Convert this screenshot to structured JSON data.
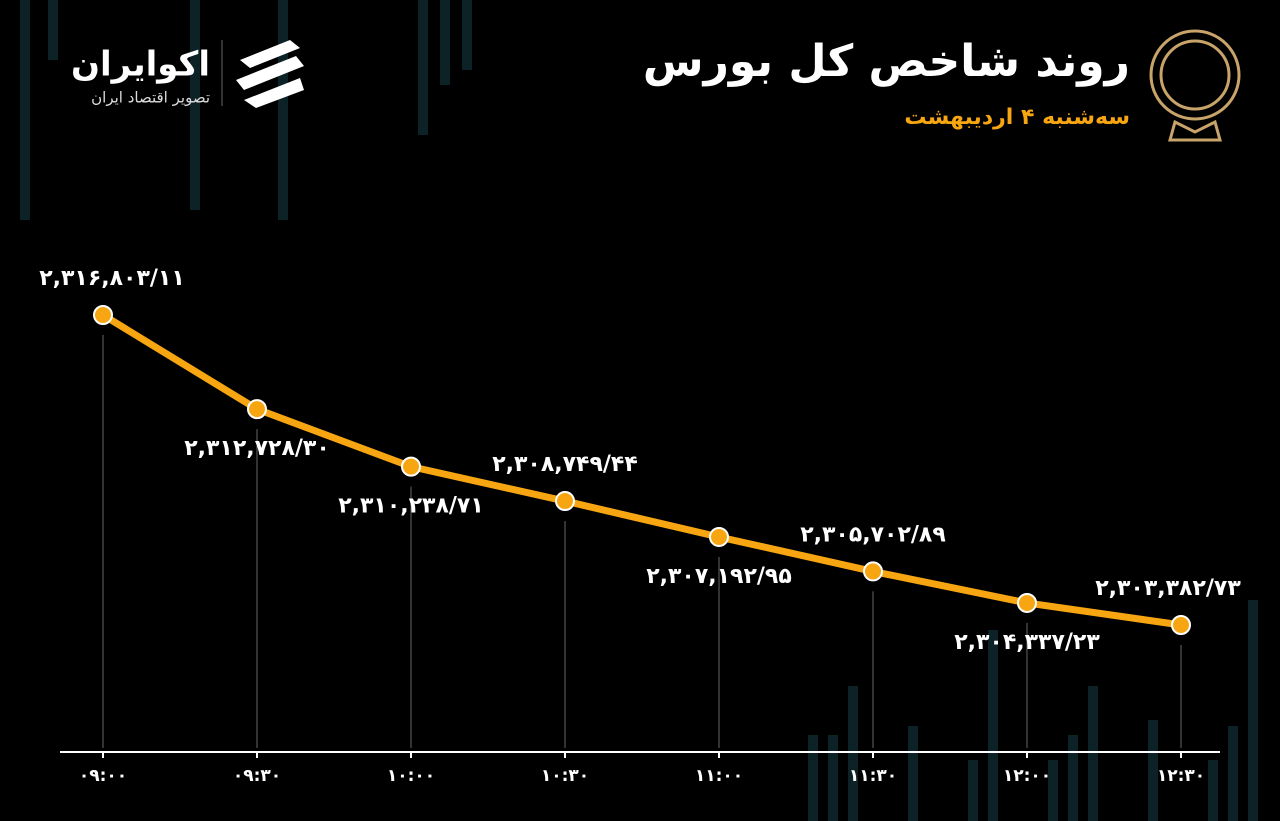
{
  "brand": {
    "name": "اکوایران",
    "tagline": "تصویر اقتصاد ایران"
  },
  "chart_data": {
    "type": "line",
    "title": "روند شاخص کل بورس",
    "subtitle": "سه‌شنبه ۴ اردیبهشت",
    "categories": [
      "۰۹:۰۰",
      "۰۹:۳۰",
      "۱۰:۰۰",
      "۱۰:۳۰",
      "۱۱:۰۰",
      "۱۱:۳۰",
      "۱۲:۰۰",
      "۱۲:۳۰"
    ],
    "series": [
      {
        "name": "شاخص کل",
        "color": "#f7a612",
        "values": [
          2316803.11,
          2312728.3,
          2310238.71,
          2308749.44,
          2307192.95,
          2305702.89,
          2304337.23,
          2303382.73
        ],
        "value_labels": [
          "۲,۳۱۶,۸۰۳/۱۱",
          "۲,۳۱۲,۷۲۸/۳۰",
          "۲,۳۱۰,۲۳۸/۷۱",
          "۲,۳۰۸,۷۴۹/۴۴",
          "۲,۳۰۷,۱۹۲/۹۵",
          "۲,۳۰۵,۷۰۲/۸۹",
          "۲,۳۰۴,۳۳۷/۲۳",
          "۲,۳۰۳,۳۸۲/۷۳"
        ]
      }
    ]
  }
}
